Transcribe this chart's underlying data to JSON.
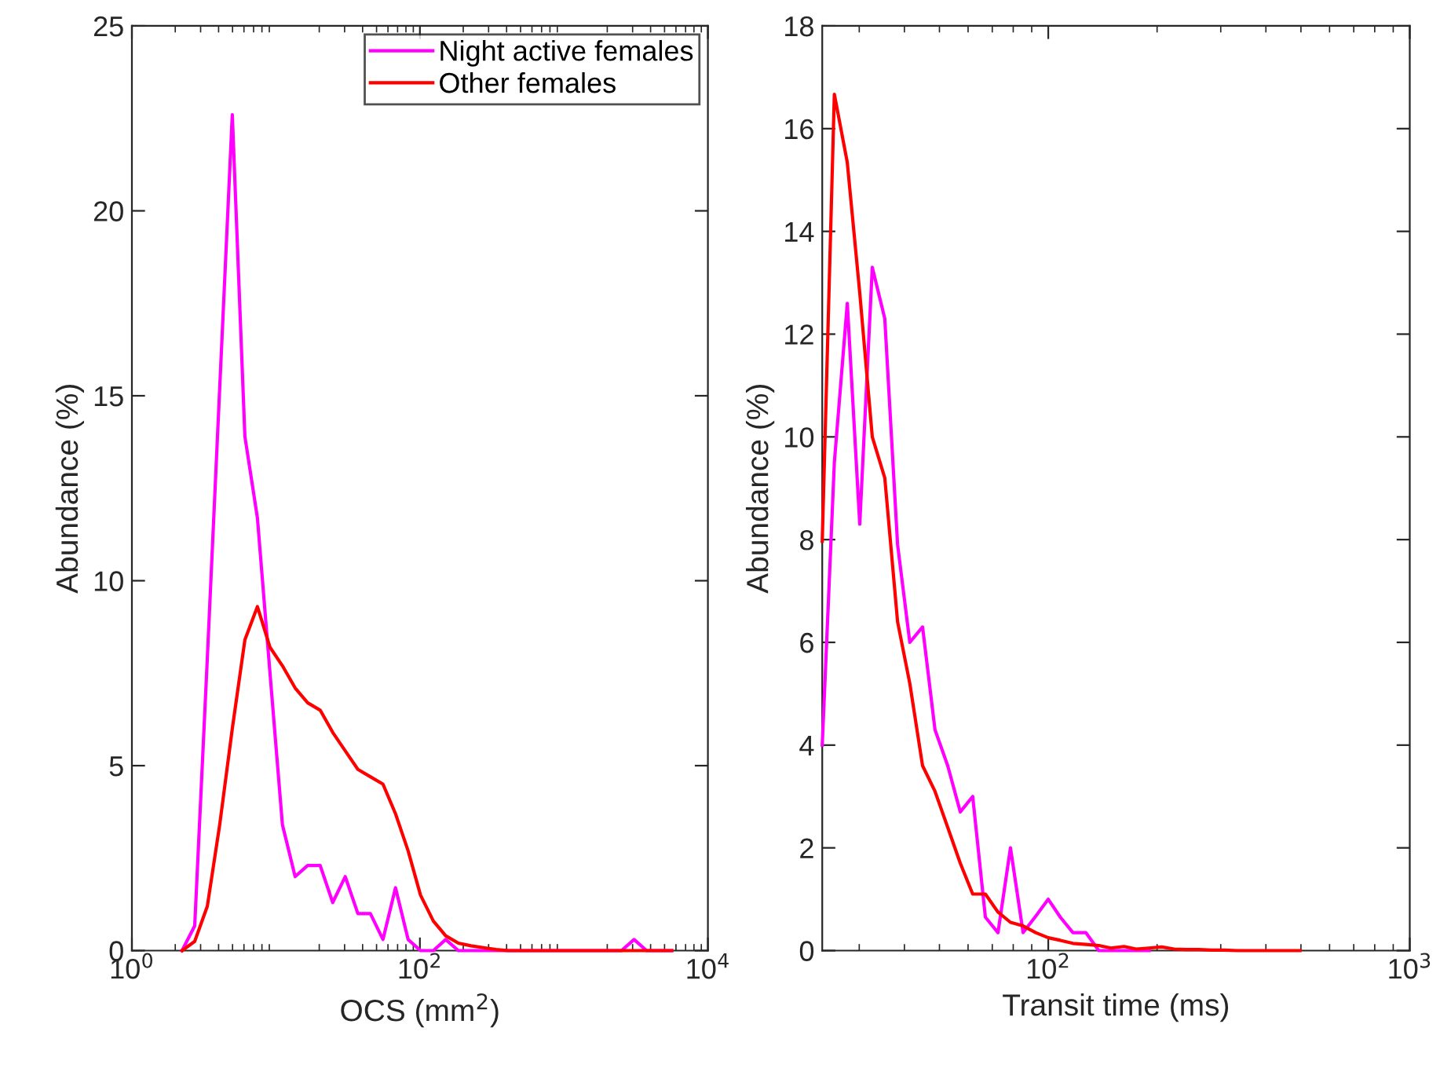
{
  "chart_data": [
    {
      "type": "line",
      "xlabel": "OCS (mm$^{2}$)",
      "ylabel": "Abundance (%)",
      "log": "x",
      "xlim": [
        1,
        10000
      ],
      "xticks": [
        {
          "value": 1,
          "label": "10$^{0}$"
        },
        {
          "value": 100,
          "label": "10$^{2}$"
        },
        {
          "value": 10000,
          "label": "10$^{4}$"
        }
      ],
      "ylim": [
        0,
        25
      ],
      "yticks": [
        0,
        5,
        10,
        15,
        20,
        25
      ],
      "grid": false,
      "legend": "top right",
      "line_style": "solid",
      "marker": "none",
      "x": [
        2.23,
        2.73,
        3.34,
        4.07,
        4.98,
        6.09,
        7.44,
        9.1,
        11.1,
        13.6,
        16.6,
        20.3,
        24.8,
        30.3,
        37.1,
        45.3,
        55.4,
        67.7,
        82.8,
        101,
        124,
        151,
        185,
        226,
        276,
        337,
        412,
        504,
        616,
        753,
        920,
        1125,
        1375,
        1680,
        2055,
        2512,
        3070,
        3750,
        4590,
        5610
      ],
      "series": [
        {
          "name": "Night active females",
          "color": "#ff00ff",
          "values": [
            0,
            0.67,
            7.9,
            15.2,
            22.6,
            13.9,
            11.7,
            7.5,
            3.4,
            2.0,
            2.3,
            2.3,
            1.3,
            2.0,
            1.0,
            1.0,
            0.3,
            1.7,
            0.3,
            0,
            0,
            0.3,
            0,
            0,
            0,
            0,
            0,
            0,
            0,
            0,
            0,
            0,
            0,
            0,
            0,
            0,
            0.3,
            0,
            0,
            0
          ]
        },
        {
          "name": "Other females",
          "color": "#ff0000",
          "values": [
            0,
            0.25,
            1.2,
            3.4,
            6.0,
            8.4,
            9.3,
            8.2,
            7.7,
            7.1,
            6.7,
            6.5,
            5.9,
            5.4,
            4.9,
            4.7,
            4.5,
            3.7,
            2.7,
            1.5,
            0.8,
            0.4,
            0.2,
            0.13,
            0.08,
            0.03,
            0,
            0,
            0,
            0,
            0,
            0,
            0,
            0,
            0,
            0,
            0,
            0,
            0,
            0
          ]
        }
      ]
    },
    {
      "type": "line",
      "xlabel": "Transit time (ms)",
      "ylabel": "Abundance (%)",
      "log": "x",
      "xlim": [
        23.7,
        1000
      ],
      "xticks": [
        {
          "value": 100,
          "label": "10$^{2}$"
        },
        {
          "value": 1000,
          "label": "10$^{3}$"
        }
      ],
      "ylim": [
        0,
        18
      ],
      "yticks": [
        0,
        2,
        4,
        6,
        8,
        10,
        12,
        14,
        16,
        18
      ],
      "grid": false,
      "legend": false,
      "line_style": "solid",
      "marker": "none",
      "x": [
        23.7,
        25.6,
        27.8,
        30.1,
        32.6,
        35.3,
        38.3,
        41.4,
        44.9,
        48.6,
        52.7,
        57.1,
        61.8,
        67.0,
        72.6,
        78.6,
        85.2,
        92.3,
        100,
        108,
        117,
        127,
        138,
        149,
        162,
        175,
        190,
        206,
        223,
        241,
        261,
        283,
        307,
        333,
        360,
        390,
        423,
        458,
        497
      ],
      "series": [
        {
          "color": "#ff00ff",
          "values": [
            4.0,
            9.5,
            12.6,
            8.3,
            13.3,
            12.3,
            7.9,
            6.0,
            6.3,
            4.3,
            3.6,
            2.7,
            3.0,
            0.65,
            0.35,
            2.0,
            0.35,
            0.67,
            1.0,
            0.65,
            0.35,
            0.35,
            0,
            0,
            0,
            0,
            0,
            null,
            null,
            null,
            null,
            null,
            null,
            null,
            null,
            null,
            null,
            null,
            null
          ]
        },
        {
          "color": "#ff0000",
          "values": [
            7.97,
            16.67,
            15.34,
            12.8,
            10.0,
            9.2,
            6.4,
            5.2,
            3.6,
            3.1,
            2.4,
            1.7,
            1.1,
            1.1,
            0.75,
            0.55,
            0.48,
            0.35,
            0.25,
            0.2,
            0.14,
            0.12,
            0.1,
            0.05,
            0.08,
            0.03,
            0.05,
            0.07,
            0.03,
            0.02,
            0.02,
            0.01,
            0.01,
            0,
            0,
            0,
            0,
            0,
            0
          ]
        }
      ]
    }
  ]
}
